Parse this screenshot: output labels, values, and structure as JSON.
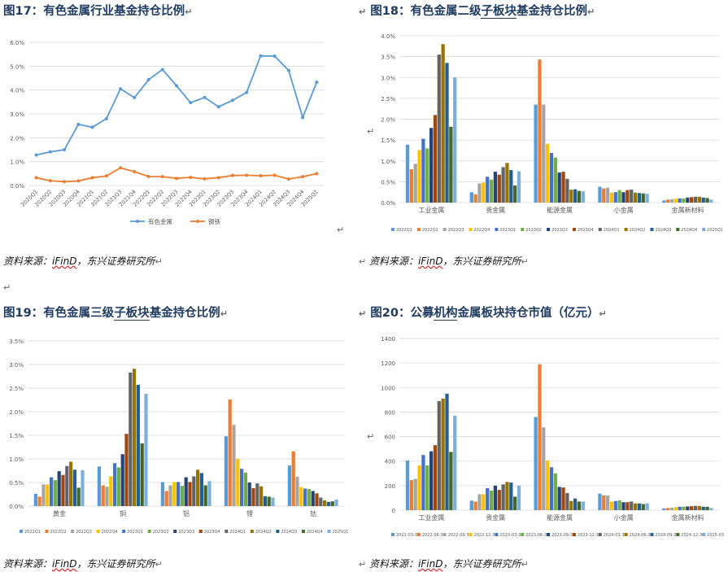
{
  "figures": [
    {
      "title_prefix": "图17：",
      "title_main": "有色金属行业基金持仓比例",
      "title_ul": "",
      "title_rest": ""
    },
    {
      "title_prefix": "图18：",
      "title_main": "有色金属二级",
      "title_ul": "子板块",
      "title_rest": "基金持仓比例"
    },
    {
      "title_prefix": "图19：",
      "title_main": "有色金属三级",
      "title_ul": "子板块",
      "title_rest": "基金持仓比例"
    },
    {
      "title_prefix": "图20：",
      "title_main": "公募",
      "title_ul": "机构",
      "title_rest": "金属板块持仓市值（亿元）"
    }
  ],
  "source": {
    "prefix": "资料来源：",
    "brand": "iFinD",
    "rest": "，东兴证券研究所"
  },
  "paragraph_mark": "↵",
  "colors": [
    "#5b9bd5",
    "#ed7d31",
    "#a5a5a5",
    "#ffc000",
    "#4472c4",
    "#70ad47",
    "#264478",
    "#9e480e",
    "#636363",
    "#997300",
    "#255e91",
    "#43682b",
    "#7cafdd"
  ],
  "chart_data": [
    {
      "type": "line",
      "categories": [
        "2020Q1",
        "2020Q2",
        "2020Q3",
        "2020Q4",
        "2021Q1",
        "2021Q2",
        "2021Q3",
        "2021Q4",
        "2022Q1",
        "2022Q2",
        "2022Q3",
        "2022Q4",
        "2023Q1",
        "2023Q2",
        "2023Q3",
        "2023Q4",
        "2024Q1",
        "2024Q2",
        "2024Q3",
        "2024Q4",
        "2025Q1"
      ],
      "series": [
        {
          "name": "有色金属",
          "color": "#5b9bd5",
          "values": [
            1.28,
            1.41,
            1.5,
            2.56,
            2.44,
            2.8,
            4.05,
            3.68,
            4.43,
            4.86,
            4.18,
            3.47,
            3.69,
            3.3,
            3.57,
            3.9,
            5.43,
            5.42,
            4.82,
            2.85,
            4.33
          ]
        },
        {
          "name": "钢铁",
          "color": "#ed7d31",
          "values": [
            0.33,
            0.2,
            0.16,
            0.19,
            0.33,
            0.4,
            0.74,
            0.58,
            0.38,
            0.37,
            0.3,
            0.34,
            0.28,
            0.33,
            0.42,
            0.43,
            0.41,
            0.43,
            0.27,
            0.37,
            0.5
          ]
        }
      ],
      "yticks": [
        "0.0%",
        "1.0%",
        "2.0%",
        "3.0%",
        "4.0%",
        "5.0%",
        "6.0%"
      ],
      "ylim": [
        0,
        6
      ],
      "grid": true,
      "legend": "bottom"
    },
    {
      "type": "bar",
      "categories": [
        "工业金属",
        "贵金属",
        "能源金属",
        "小金属",
        "金属新材料"
      ],
      "series_names": [
        "2022Q1",
        "2022Q2",
        "2022Q3",
        "2022Q4",
        "2023Q1",
        "2023Q2",
        "2023Q3",
        "2023Q4",
        "2024Q1",
        "2024Q2",
        "2024Q3",
        "2024Q4",
        "2025Q1"
      ],
      "values": [
        [
          1.39,
          0.8,
          0.93,
          1.26,
          1.53,
          1.3,
          1.79,
          2.1,
          3.55,
          3.8,
          3.35,
          1.82,
          3.0
        ],
        [
          0.25,
          0.2,
          0.46,
          0.48,
          0.62,
          0.55,
          0.74,
          0.67,
          0.85,
          0.95,
          0.78,
          0.41,
          0.75
        ],
        [
          2.35,
          3.43,
          2.35,
          1.41,
          1.19,
          1.08,
          0.72,
          0.74,
          0.57,
          0.31,
          0.32,
          0.28,
          0.27
        ],
        [
          0.38,
          0.34,
          0.36,
          0.24,
          0.25,
          0.3,
          0.25,
          0.3,
          0.31,
          0.24,
          0.23,
          0.22,
          0.21
        ],
        [
          0.05,
          0.07,
          0.08,
          0.09,
          0.1,
          0.1,
          0.12,
          0.13,
          0.14,
          0.14,
          0.12,
          0.11,
          0.07
        ]
      ],
      "yticks": [
        "0.0%",
        "0.5%",
        "1.0%",
        "1.5%",
        "2.0%",
        "2.5%",
        "3.0%",
        "3.5%",
        "4.0%"
      ],
      "ylim": [
        0,
        4
      ],
      "legend": "bottom"
    },
    {
      "type": "bar",
      "categories": [
        "黄金",
        "铜",
        "铝",
        "锂",
        "钴"
      ],
      "series_names": [
        "2022Q1",
        "2022Q2",
        "2022Q3",
        "2022Q4",
        "2023Q1",
        "2023Q2",
        "2023Q3",
        "2023Q4",
        "2024Q1",
        "2024Q2",
        "2024Q3",
        "2024Q4",
        "2025Q1"
      ],
      "values": [
        [
          0.26,
          0.2,
          0.46,
          0.46,
          0.61,
          0.55,
          0.74,
          0.66,
          0.85,
          0.94,
          0.77,
          0.39,
          0.76
        ],
        [
          0.84,
          0.44,
          0.41,
          0.63,
          0.91,
          0.82,
          1.1,
          1.53,
          2.83,
          2.91,
          2.57,
          1.33,
          2.38
        ],
        [
          0.51,
          0.32,
          0.44,
          0.51,
          0.51,
          0.43,
          0.61,
          0.51,
          0.63,
          0.77,
          0.7,
          0.44,
          0.53
        ],
        [
          1.48,
          2.26,
          1.72,
          1.0,
          0.79,
          0.71,
          0.5,
          0.38,
          0.48,
          0.42,
          0.21,
          0.2,
          0.18
        ],
        [
          0.86,
          1.16,
          0.62,
          0.4,
          0.37,
          0.36,
          0.32,
          0.27,
          0.18,
          0.12,
          0.09,
          0.1,
          0.14
        ]
      ],
      "yticks": [
        "0.0%",
        "0.5%",
        "1.0%",
        "1.5%",
        "2.0%",
        "2.5%",
        "3.0%",
        "3.5%"
      ],
      "ylim": [
        0,
        3.5
      ],
      "legend": "bottom"
    },
    {
      "type": "bar",
      "categories": [
        "工业金属",
        "贵金属",
        "能源金属",
        "小金属",
        "金属新材料"
      ],
      "series_names": [
        "2022-03-31",
        "2022-06-30",
        "2022-09-30",
        "2022-12-31",
        "2023-03-31",
        "2023-06-30",
        "2023-09-30",
        "2023-12-31",
        "2024-03-31",
        "2024-06-30",
        "2024-09-30",
        "2024-12-31",
        "2025-03-31"
      ],
      "values": [
        [
          405,
          245,
          255,
          365,
          450,
          365,
          480,
          530,
          890,
          910,
          950,
          475,
          770
        ],
        [
          78,
          70,
          130,
          130,
          180,
          160,
          200,
          165,
          210,
          230,
          225,
          110,
          200
        ],
        [
          760,
          1190,
          675,
          405,
          350,
          300,
          190,
          185,
          140,
          75,
          95,
          70,
          70
        ],
        [
          135,
          120,
          120,
          70,
          75,
          80,
          65,
          65,
          70,
          55,
          55,
          50,
          55
        ],
        [
          15,
          18,
          20,
          25,
          28,
          28,
          30,
          32,
          35,
          34,
          28,
          28,
          18
        ]
      ],
      "yticks": [
        "0",
        "200",
        "400",
        "600",
        "800",
        "1000",
        "1200",
        "1400"
      ],
      "ylim": [
        0,
        1400
      ],
      "legend": "bottom"
    }
  ]
}
